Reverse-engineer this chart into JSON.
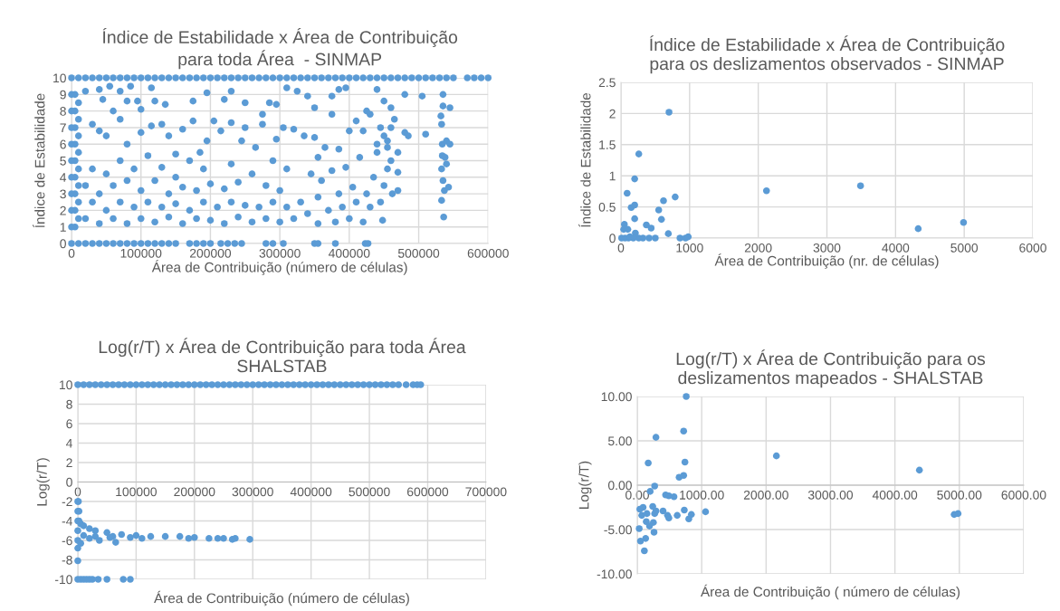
{
  "chart_data": [
    {
      "type": "scatter",
      "title": "Índice de Estabilidade x Área de Contribuição\npara toda Área  - SINMAP",
      "xlabel": "Área de Contribuição (número de células)",
      "ylabel": "Índice de Estabilidade",
      "xlim": [
        0,
        600000
      ],
      "xticks": [
        0,
        100000,
        200000,
        300000,
        400000,
        500000,
        600000
      ],
      "ylim": [
        0,
        10
      ],
      "yticks": [
        0,
        1,
        2,
        3,
        4,
        5,
        6,
        7,
        8,
        9,
        10
      ],
      "grid": true,
      "marker": "circle",
      "series": [
        {
          "color": "#5b9bd5",
          "x": [
            0,
            10000,
            20000,
            30000,
            40000,
            50000,
            60000,
            70000,
            80000,
            90000,
            100000,
            110000,
            120000,
            130000,
            140000,
            150000,
            160000,
            170000,
            180000,
            190000,
            200000,
            210000,
            220000,
            230000,
            240000,
            250000,
            260000,
            270000,
            280000,
            290000,
            300000,
            310000,
            320000,
            330000,
            340000,
            350000,
            360000,
            370000,
            380000,
            390000,
            400000,
            410000,
            420000,
            430000,
            440000,
            450000,
            460000,
            470000,
            480000,
            490000,
            500000,
            510000,
            520000,
            530000,
            540000,
            550000,
            570000,
            580000,
            590000,
            600000,
            0,
            10000,
            20000,
            30000,
            40000,
            50000,
            60000,
            70000,
            80000,
            90000,
            100000,
            110000,
            120000,
            130000,
            140000,
            150000,
            170000,
            180000,
            190000,
            200000,
            215000,
            225000,
            235000,
            245000,
            280000,
            290000,
            305000,
            350000,
            355000,
            380000,
            423000,
            427000,
            0,
            0,
            0,
            0,
            0,
            0,
            0,
            0,
            0,
            5000,
            5000,
            5000,
            5000,
            5000,
            5000,
            5000,
            5000,
            5000,
            10000,
            10000,
            10000,
            10000,
            10000,
            10000,
            10000,
            10000,
            20000,
            40000,
            45000,
            55000,
            60000,
            70000,
            80000,
            85000,
            95000,
            100000,
            115000,
            120000,
            135000,
            175000,
            195000,
            220000,
            230000,
            250000,
            275000,
            285000,
            295000,
            310000,
            325000,
            340000,
            350000,
            375000,
            385000,
            395000,
            425000,
            440000,
            450000,
            460000,
            480000,
            505000,
            535000,
            545000,
            535000,
            30000,
            40000,
            50000,
            70000,
            80000,
            100000,
            115000,
            130000,
            140000,
            150000,
            160000,
            175000,
            185000,
            195000,
            205000,
            215000,
            230000,
            245000,
            250000,
            265000,
            275000,
            295000,
            305000,
            320000,
            335000,
            350000,
            355000,
            365000,
            375000,
            385000,
            400000,
            410000,
            420000,
            430000,
            440000,
            445000,
            450000,
            455000,
            460000,
            465000,
            470000,
            480000,
            485000,
            510000,
            532000,
            533000,
            534000,
            538000,
            540000,
            545000,
            534000,
            533000,
            535000,
            537000,
            540000,
            533000,
            536000,
            543000,
            20000,
            20000,
            30000,
            30000,
            40000,
            40000,
            50000,
            50000,
            60000,
            60000,
            70000,
            70000,
            80000,
            80000,
            90000,
            90000,
            100000,
            100000,
            110000,
            110000,
            120000,
            120000,
            130000,
            130000,
            140000,
            140000,
            150000,
            150000,
            160000,
            160000,
            170000,
            170000,
            180000,
            180000,
            190000,
            190000,
            200000,
            200000,
            210000,
            220000,
            220000,
            230000,
            230000,
            240000,
            240000,
            250000,
            260000,
            260000,
            270000,
            280000,
            280000,
            290000,
            290000,
            300000,
            300000,
            310000,
            310000,
            320000,
            330000,
            340000,
            345000,
            355000,
            355000,
            360000,
            370000,
            375000,
            380000,
            385000,
            390000,
            395000,
            400000,
            405000,
            410000,
            415000,
            420000,
            425000,
            430000,
            435000,
            440000,
            445000,
            448000,
            450000,
            455000,
            455000,
            460000,
            462000,
            470000,
            470000
          ],
          "values": [
            10,
            10,
            10,
            10,
            10,
            10,
            10,
            10,
            10,
            10,
            10,
            10,
            10,
            10,
            10,
            10,
            10,
            10,
            10,
            10,
            10,
            10,
            10,
            10,
            10,
            10,
            10,
            10,
            10,
            10,
            10,
            10,
            10,
            10,
            10,
            10,
            10,
            10,
            10,
            10,
            10,
            10,
            10,
            10,
            10,
            10,
            10,
            10,
            10,
            10,
            10,
            10,
            10,
            10,
            10,
            10,
            10,
            10,
            10,
            10,
            0,
            0,
            0,
            0,
            0,
            0,
            0,
            0,
            0,
            0,
            0,
            0,
            0,
            0,
            0,
            0,
            0,
            0,
            0,
            0,
            0,
            0,
            0,
            0,
            0,
            0,
            0,
            0,
            0,
            0,
            0,
            0,
            1,
            2,
            3,
            4,
            5,
            6,
            7,
            8,
            9,
            1,
            2,
            3,
            4,
            5,
            6,
            7,
            8,
            9,
            1.5,
            2.5,
            3.5,
            4.5,
            5.5,
            6.5,
            7.5,
            8.5,
            9.2,
            9.3,
            8.7,
            9.5,
            8.0,
            9.2,
            8.6,
            9.5,
            8.6,
            8.1,
            9.4,
            8.6,
            8.4,
            8.6,
            9.1,
            8.7,
            9.2,
            8.5,
            7.8,
            8.5,
            8.4,
            9.4,
            9.2,
            8.9,
            8.2,
            8.9,
            9.3,
            9.4,
            8.0,
            9.3,
            8.6,
            8.2,
            9.0,
            8.9,
            9.0,
            8.2,
            8.3,
            7.2,
            6.8,
            6.5,
            7.5,
            6.0,
            6.7,
            7.1,
            7.2,
            6.5,
            5.4,
            6.9,
            7.4,
            5.5,
            6.2,
            7.4,
            6.8,
            7.3,
            6.2,
            7.0,
            5.8,
            7.2,
            6.3,
            7.0,
            6.9,
            6.5,
            6.4,
            5.2,
            5.8,
            7.8,
            5.7,
            6.8,
            7.4,
            6.8,
            7.8,
            6.0,
            7.0,
            6.5,
            5.8,
            7.0,
            7.5,
            5.5,
            6.7,
            6.5,
            6.6,
            7.7,
            7.2,
            6.0,
            5.2,
            6.2,
            6.0,
            5.3,
            4.5,
            3.8,
            3.2,
            4.8,
            2.6,
            1.6,
            3.4,
            1.5,
            3.5,
            2.5,
            4.5,
            1.2,
            3.0,
            2.0,
            4.2,
            1.5,
            3.5,
            2.5,
            5.0,
            1.2,
            3.8,
            2.2,
            4.5,
            1.5,
            3.2,
            2.5,
            5.3,
            1.3,
            3.8,
            2.2,
            4.6,
            1.6,
            3.0,
            2.4,
            4.0,
            1.2,
            3.4,
            2.0,
            5.0,
            1.5,
            3.2,
            2.5,
            4.5,
            1.4,
            3.6,
            2.2,
            1.2,
            3.3,
            2.5,
            4.8,
            1.6,
            3.7,
            2.3,
            1.3,
            4.2,
            2.2,
            1.5,
            3.5,
            2.5,
            5.0,
            1.3,
            3.2,
            2.2,
            4.5,
            1.5,
            2.5,
            1.8,
            4.2,
            1.2,
            2.8,
            3.8,
            2.0,
            4.4,
            1.3,
            3.0,
            2.2,
            4.6,
            1.5,
            3.4,
            2.5,
            5.2,
            1.3,
            3.0,
            2.2,
            4.0,
            5.5,
            2.5,
            1.4,
            3.5,
            4.5,
            6.2,
            5.0,
            3.0,
            4.3,
            3.2
          ]
        }
      ]
    },
    {
      "type": "scatter",
      "title": "Índice de Estabilidade x Área de Contribuição\npara os deslizamentos observados - SINMAP",
      "xlabel": "Área de Contribuição (nr. de células)",
      "ylabel": "Índice de Estabilidade",
      "xlim": [
        0,
        6000
      ],
      "xticks": [
        0,
        1000,
        2000,
        3000,
        4000,
        5000,
        6000
      ],
      "ylim": [
        0,
        2.5
      ],
      "yticks": [
        0,
        0.5,
        1,
        1.5,
        2,
        2.5
      ],
      "grid": true,
      "marker": "circle",
      "series": [
        {
          "color": "#5b9bd5",
          "x": [
            700,
            260,
            200,
            90,
            150,
            200,
            200,
            550,
            620,
            790,
            590,
            370,
            440,
            50,
            40,
            100,
            210,
            690,
            980,
            860,
            940,
            500,
            410,
            320,
            260,
            180,
            110,
            60,
            10,
            130,
            2120,
            3490,
            4330,
            4990
          ],
          "values": [
            2.02,
            1.35,
            0.95,
            0.72,
            0.49,
            0.53,
            0.31,
            0.45,
            0.6,
            0.66,
            0.3,
            0.21,
            0.16,
            0.22,
            0.14,
            0.14,
            0.08,
            0.07,
            0.02,
            0,
            0,
            0,
            0,
            0,
            0,
            0,
            0,
            0,
            0,
            0.02,
            0.76,
            0.84,
            0.15,
            0.25
          ]
        }
      ]
    },
    {
      "type": "scatter",
      "title": "Log(r/T) x Área de Contribuição para toda Área\nSHALSTAB",
      "xlabel": "Área de Contribuição (número de células)",
      "ylabel": "Log(r/T)",
      "xlim": [
        0,
        700000
      ],
      "xticks": [
        0,
        100000,
        200000,
        300000,
        400000,
        500000,
        600000,
        700000
      ],
      "ylim": [
        -10,
        10
      ],
      "yticks": [
        -10,
        -8,
        -6,
        -4,
        -2,
        0,
        2,
        4,
        6,
        8,
        10
      ],
      "grid": true,
      "marker": "circle",
      "series": [
        {
          "color": "#5b9bd5",
          "x": [
            0,
            10000,
            20000,
            30000,
            40000,
            50000,
            60000,
            70000,
            80000,
            90000,
            100000,
            110000,
            120000,
            130000,
            140000,
            150000,
            160000,
            170000,
            180000,
            190000,
            200000,
            210000,
            220000,
            230000,
            240000,
            250000,
            260000,
            270000,
            280000,
            290000,
            300000,
            310000,
            320000,
            330000,
            340000,
            350000,
            360000,
            370000,
            380000,
            390000,
            400000,
            410000,
            420000,
            430000,
            440000,
            450000,
            460000,
            470000,
            480000,
            490000,
            500000,
            510000,
            520000,
            530000,
            540000,
            550000,
            563000,
            575000,
            582000,
            588000,
            0,
            0,
            0,
            0,
            0,
            0,
            0,
            1000,
            2000,
            2000,
            5000,
            10000,
            20000,
            30000,
            50000,
            75000,
            100000,
            125000,
            150000,
            175000,
            200000,
            225000,
            250000,
            270000,
            295000,
            10000,
            30000,
            60000,
            90000,
            110000,
            190000,
            240000,
            265000,
            20000,
            37000,
            65000,
            55000,
            5000,
            0,
            5000,
            10000,
            15000,
            20000,
            25000,
            35000,
            50000,
            78000,
            90000
          ],
          "values": [
            10,
            10,
            10,
            10,
            10,
            10,
            10,
            10,
            10,
            10,
            10,
            10,
            10,
            10,
            10,
            10,
            10,
            10,
            10,
            10,
            10,
            10,
            10,
            10,
            10,
            10,
            10,
            10,
            10,
            10,
            10,
            10,
            10,
            10,
            10,
            10,
            10,
            10,
            10,
            10,
            10,
            10,
            10,
            10,
            10,
            10,
            10,
            10,
            10,
            10,
            10,
            10,
            10,
            10,
            10,
            10,
            10,
            10,
            10,
            10,
            -2,
            -3,
            -4,
            -5,
            -6,
            -6.8,
            -8.1,
            -2,
            -3,
            -4,
            -4.3,
            -4.5,
            -4.8,
            -5,
            -5.2,
            -5.4,
            -5.5,
            -5.6,
            -5.6,
            -5.6,
            -5.7,
            -5.8,
            -5.8,
            -5.8,
            -5.9,
            -5.5,
            -5.6,
            -5.6,
            -5.7,
            -5.8,
            -5.8,
            -5.8,
            -5.9,
            -5.8,
            -6.0,
            -6.2,
            -5.7,
            -6.3,
            -10,
            -10,
            -10,
            -10,
            -10,
            -10,
            -10,
            -10,
            -10,
            -10
          ]
        }
      ]
    },
    {
      "type": "scatter",
      "title": "Log(r/T) x Área de Contribuição para os\ndeslizamentos mapeados - SHALSTAB",
      "xlabel": "Área de Contribuição ( número de células)",
      "ylabel": "Log(r/T)",
      "xlim": [
        0,
        6000
      ],
      "xticks": [
        {
          "value": 0,
          "label": "0.00"
        },
        {
          "value": 1000,
          "label": "1000.00"
        },
        {
          "value": 2000,
          "label": "2000.00"
        },
        {
          "value": 3000,
          "label": "3000.00"
        },
        {
          "value": 4000,
          "label": "4000.00"
        },
        {
          "value": 5000,
          "label": "5000.00"
        },
        {
          "value": 6000,
          "label": "6000.00"
        }
      ],
      "ylim": [
        -10,
        10
      ],
      "yticks": [
        {
          "value": -10,
          "label": "-10.00"
        },
        {
          "value": -5,
          "label": "-5.00"
        },
        {
          "value": 0,
          "label": "0.00"
        },
        {
          "value": 5,
          "label": "5.00"
        },
        {
          "value": 10,
          "label": "10.00"
        }
      ],
      "grid": true,
      "marker": "circle",
      "series": [
        {
          "color": "#5b9bd5",
          "x": [
            760,
            720,
            290,
            170,
            740,
            2160,
            4380,
            650,
            720,
            270,
            200,
            440,
            490,
            570,
            40,
            240,
            290,
            400,
            470,
            490,
            620,
            730,
            840,
            800,
            1060,
            4920,
            4980,
            70,
            140,
            250,
            190,
            260,
            30,
            130,
            50,
            110,
            150,
            270,
            90
          ],
          "values": [
            10,
            6.1,
            5.4,
            2.5,
            2.6,
            3.3,
            1.7,
            0.9,
            1.1,
            -0.1,
            -0.7,
            -1.1,
            -1.2,
            -1.3,
            -2.7,
            -2.4,
            -2.9,
            -2.9,
            -3.4,
            -3.7,
            -3.4,
            -2.8,
            -3.3,
            -3.8,
            -3.0,
            -3.3,
            -3.2,
            -3.4,
            -4.1,
            -4.2,
            -4.6,
            -5.3,
            -4.9,
            -6.0,
            -6.3,
            -7.4,
            -3.2,
            -3.2,
            -2.5
          ]
        }
      ]
    }
  ]
}
